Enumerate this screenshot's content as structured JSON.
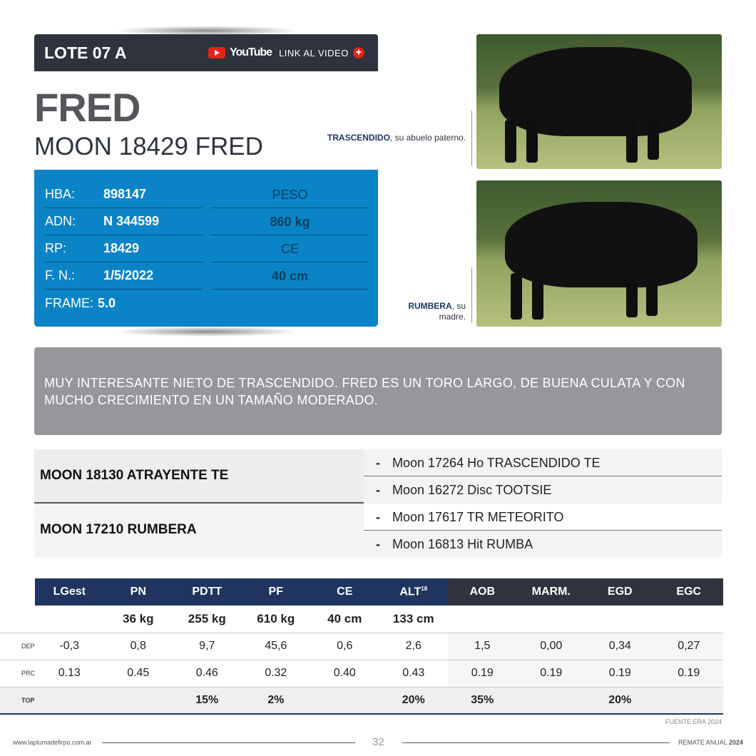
{
  "header": {
    "lote": "LOTE 07 A",
    "youtube": "YouTube",
    "link": "LINK AL VIDEO",
    "plus": "+"
  },
  "animal": {
    "name": "FRED",
    "full_name": "MOON 18429 FRED"
  },
  "info": [
    {
      "label": "HBA:",
      "value": "898147"
    },
    {
      "label": "ADN:",
      "value": "N 344599"
    },
    {
      "label": "RP:",
      "value": "18429"
    },
    {
      "label": "F. N.:",
      "value": "1/5/2022"
    },
    {
      "label": "FRAME:",
      "value": "5.0"
    }
  ],
  "measures": {
    "peso_label": "PESO",
    "peso": "860 kg",
    "ce_label": "CE",
    "ce": "40 cm"
  },
  "photos": [
    {
      "name": "TRASCENDIDO",
      "caption": ", su abuelo paterno."
    },
    {
      "name": "RUMBERA",
      "caption": ", su madre."
    }
  ],
  "description": "MUY INTERESANTE NIETO DE TRASCENDIDO. FRED ES UN TORO LARGO, DE BUENA CULATA Y CON MUCHO CRECIMIENTO EN UN TAMAÑO MODERADO.",
  "pedigree": [
    {
      "parent": "MOON 18130 ATRAYENTE TE",
      "grandparents": [
        "Moon 17264 Ho TRASCENDIDO TE",
        "Moon 16272 Disc TOOTSIE"
      ]
    },
    {
      "parent": "MOON 17210 RUMBERA",
      "grandparents": [
        "Moon 17617 TR METEORITO",
        "Moon 16813 Hit RUMBA"
      ]
    }
  ],
  "table": {
    "headers": [
      "LGest",
      "PN",
      "PDTT",
      "PF",
      "CE",
      "ALT",
      "AOB",
      "MARM.",
      "EGD",
      "EGC"
    ],
    "alt_sup": "18",
    "weights": [
      "",
      "36 kg",
      "255 kg",
      "610 kg",
      "40 cm",
      "133 cm",
      "",
      "",
      "",
      ""
    ],
    "rows": [
      {
        "label": "DEP",
        "values": [
          "-0,3",
          "0,8",
          "9,7",
          "45,6",
          "0,6",
          "2,6",
          "1,5",
          "0,00",
          "0,34",
          "0,27"
        ]
      },
      {
        "label": "PRC",
        "values": [
          "0.13",
          "0.45",
          "0.46",
          "0.32",
          "0.40",
          "0.43",
          "0.19",
          "0.19",
          "0.19",
          "0.19"
        ]
      },
      {
        "label": "TOP",
        "values": [
          "",
          "",
          "15%",
          "2%",
          "",
          "20%",
          "35%",
          "",
          "20%",
          ""
        ]
      }
    ]
  },
  "fuente": "FUENTE ERA 2024",
  "footer": {
    "website": "www.laplumadefirpo.com.ar",
    "page": "32",
    "right": "REMATE ANUAL",
    "year": "2024"
  },
  "colors": {
    "dark": "#2e333d",
    "blue": "#0a84c6",
    "navy": "#1f3560",
    "gray": "#97969b",
    "youtube": "#e62117"
  }
}
